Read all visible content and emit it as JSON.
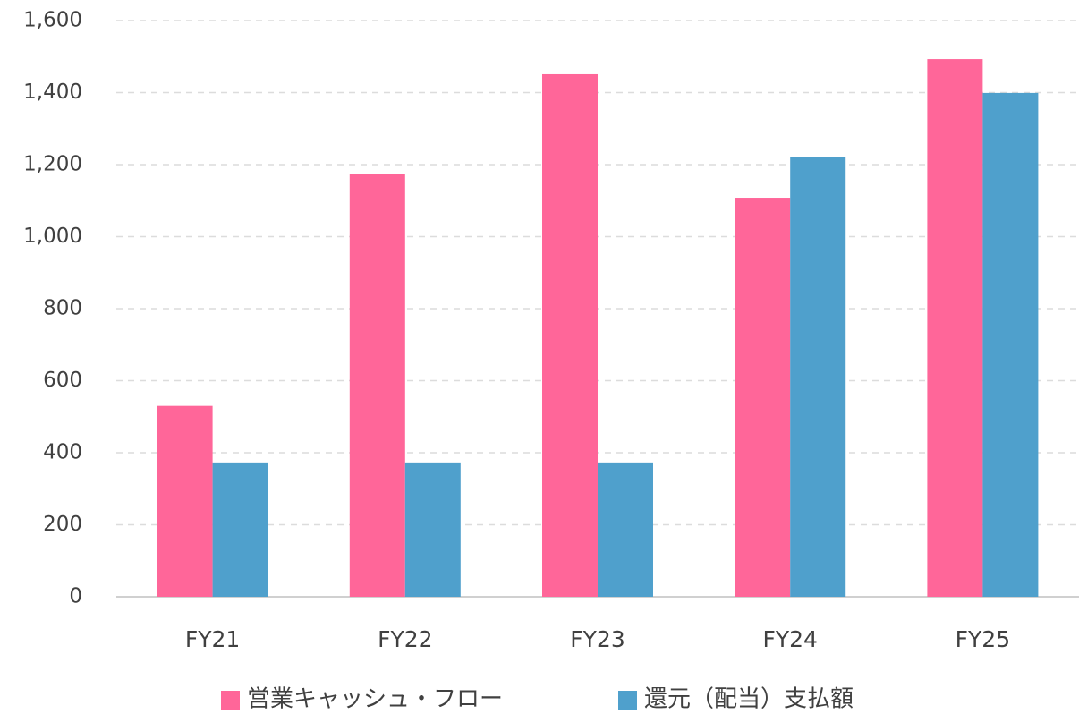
{
  "chart_data": {
    "type": "bar",
    "categories": [
      "FY21",
      "FY22",
      "FY23",
      "FY24",
      "FY25"
    ],
    "series": [
      {
        "name": "営業キャッシュ・フロー",
        "color": "#ff6699",
        "values": [
          530,
          1173,
          1451,
          1108,
          1493
        ]
      },
      {
        "name": "還元（配当）支払額",
        "color": "#4fa0cc",
        "values": [
          373,
          373,
          373,
          1222,
          1399
        ]
      }
    ],
    "ylim": [
      0,
      1600
    ],
    "yticks": [
      0,
      200,
      400,
      600,
      800,
      {
        "value": 1000,
        "label": "1,000"
      },
      {
        "value": 1200,
        "label": "1,200"
      },
      {
        "value": 1400,
        "label": "1,400"
      },
      {
        "value": 1600,
        "label": "1,600"
      }
    ],
    "grid": true,
    "legend": "bottom"
  }
}
